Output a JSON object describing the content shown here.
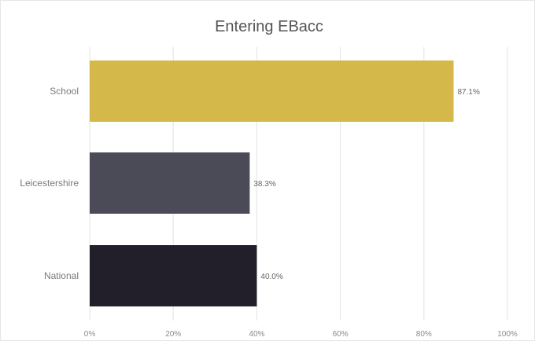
{
  "chart_data": {
    "type": "bar",
    "orientation": "horizontal",
    "title": "Entering EBacc",
    "categories": [
      "School",
      "Leicestershire",
      "National"
    ],
    "values": [
      87.1,
      38.3,
      40.0
    ],
    "data_labels": [
      "87.1%",
      "38.3%",
      "40.0%"
    ],
    "bar_colors": [
      "#d4b84a",
      "#4a4b57",
      "#231f2a"
    ],
    "xlim": [
      0,
      100
    ],
    "x_ticks": [
      0,
      20,
      40,
      60,
      80,
      100
    ],
    "x_tick_labels": [
      "0%",
      "20%",
      "40%",
      "60%",
      "80%",
      "100%"
    ],
    "xlabel": "",
    "ylabel": "",
    "grid": true,
    "legend": false
  }
}
